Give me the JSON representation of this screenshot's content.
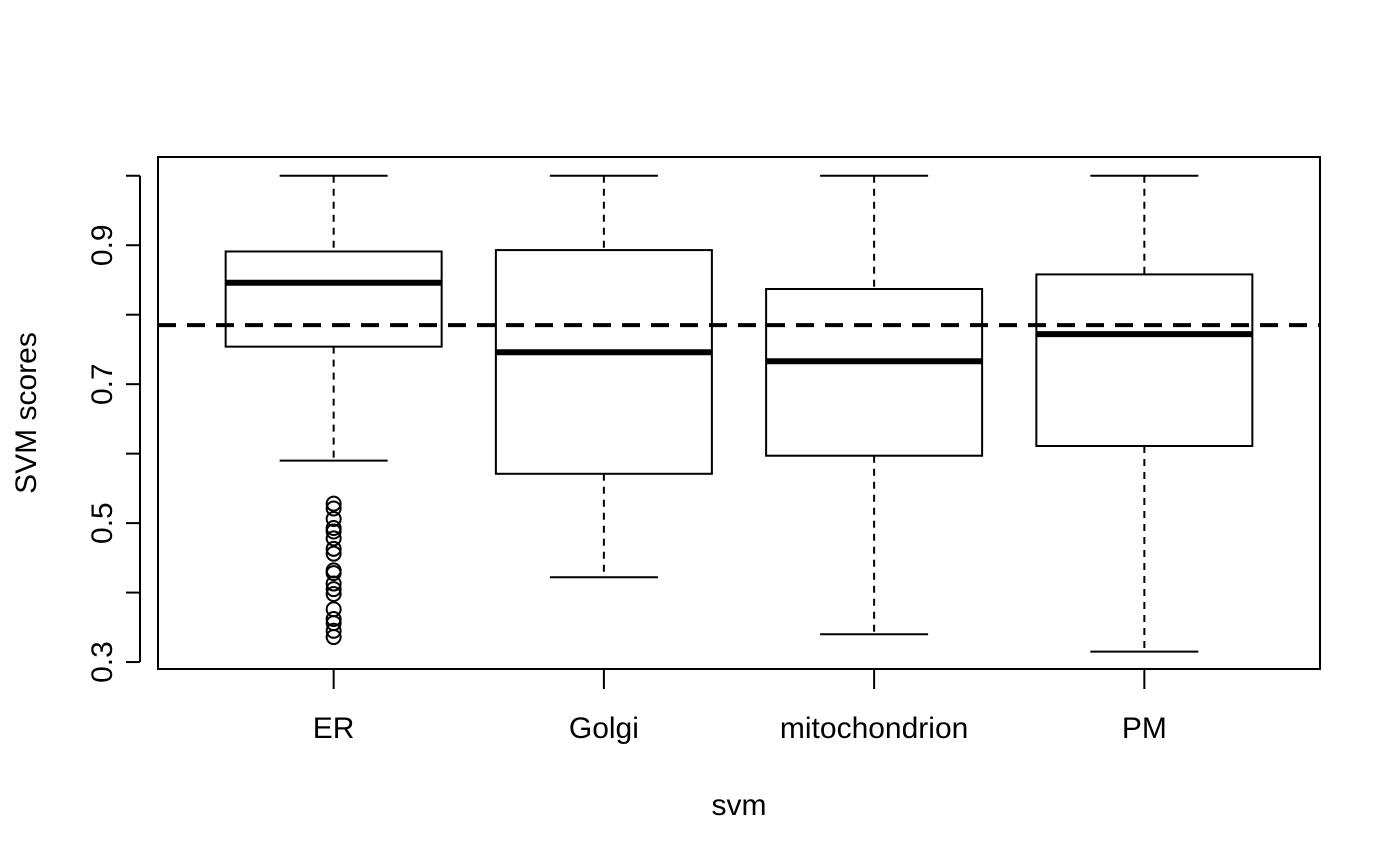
{
  "chart_data": {
    "type": "boxplot",
    "xlabel": "svm",
    "ylabel": "SVM scores",
    "ylim": [
      0.29,
      1.027
    ],
    "yticks": [
      0.3,
      0.4,
      0.5,
      0.6,
      0.7,
      0.8,
      0.9,
      1.0
    ],
    "ytick_labels": [
      {
        "value": 0.3,
        "label": "0.3"
      },
      {
        "value": 0.5,
        "label": "0.5"
      },
      {
        "value": 0.7,
        "label": "0.7"
      },
      {
        "value": 0.9,
        "label": "0.9"
      }
    ],
    "categories": [
      "ER",
      "Golgi",
      "mitochondrion",
      "PM"
    ],
    "boxes": [
      {
        "category": "ER",
        "whisker_low": 0.59,
        "q1": 0.754,
        "median": 0.846,
        "q3": 0.891,
        "whisker_high": 1.0,
        "outliers": [
          0.336,
          0.345,
          0.356,
          0.362,
          0.376,
          0.398,
          0.405,
          0.413,
          0.428,
          0.432,
          0.456,
          0.463,
          0.478,
          0.488,
          0.493,
          0.506,
          0.521,
          0.528
        ]
      },
      {
        "category": "Golgi",
        "whisker_low": 0.422,
        "q1": 0.571,
        "median": 0.746,
        "q3": 0.893,
        "whisker_high": 1.0,
        "outliers": []
      },
      {
        "category": "mitochondrion",
        "whisker_low": 0.34,
        "q1": 0.597,
        "median": 0.733,
        "q3": 0.837,
        "whisker_high": 1.0,
        "outliers": []
      },
      {
        "category": "PM",
        "whisker_low": 0.315,
        "q1": 0.611,
        "median": 0.772,
        "q3": 0.858,
        "whisker_high": 1.0,
        "outliers": []
      }
    ],
    "reference_line": {
      "y": 0.785,
      "style": "dashed"
    },
    "grid": false,
    "legend": "none"
  }
}
